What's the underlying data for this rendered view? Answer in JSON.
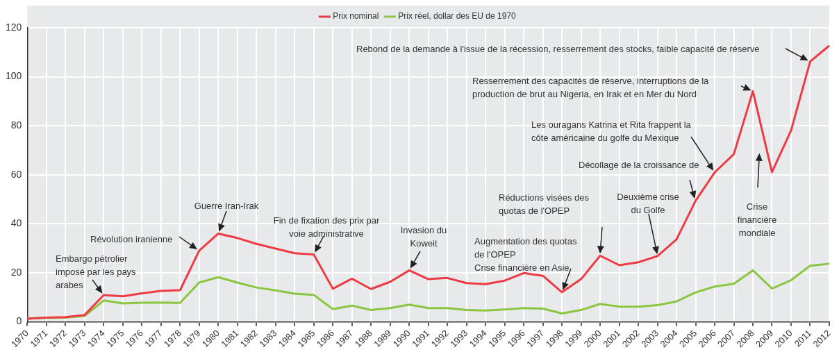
{
  "chart_data": {
    "type": "line",
    "categories": [
      "1970",
      "1971",
      "1972",
      "1973",
      "1974",
      "1975",
      "1976",
      "1977",
      "1978",
      "1979",
      "1980",
      "1981",
      "1982",
      "1983",
      "1984",
      "1985",
      "1986",
      "1987",
      "1988",
      "1989",
      "1990",
      "1991",
      "1992",
      "1993",
      "1994",
      "1995",
      "1996",
      "1997",
      "1998",
      "1999",
      "2000",
      "2001",
      "2002",
      "2003",
      "2004",
      "2005",
      "2006",
      "2007",
      "2008",
      "2009",
      "2010",
      "2011",
      "2012"
    ],
    "series": [
      {
        "name": "Prix nominal",
        "color": "#ee3a43",
        "values": [
          1.3,
          1.7,
          1.9,
          2.8,
          10.9,
          10.4,
          11.6,
          12.6,
          12.9,
          29.0,
          36.0,
          34.2,
          31.8,
          29.9,
          28.0,
          27.5,
          13.5,
          17.6,
          13.4,
          16.3,
          21.0,
          17.4,
          17.9,
          15.8,
          15.4,
          16.8,
          19.9,
          18.8,
          12.1,
          17.4,
          27.0,
          23.1,
          24.3,
          26.8,
          33.6,
          49.4,
          61.0,
          68.4,
          94.1,
          61.1,
          78.1,
          106.2,
          112.7
        ]
      },
      {
        "name": "Prix réel, dollar des EU de 1970",
        "color": "#8cc63f",
        "values": [
          1.3,
          1.6,
          1.7,
          2.4,
          8.7,
          7.5,
          7.8,
          7.9,
          7.7,
          16.0,
          18.2,
          16.0,
          14.0,
          12.8,
          11.5,
          11.0,
          5.2,
          6.6,
          4.8,
          5.6,
          7.0,
          5.6,
          5.6,
          4.8,
          4.6,
          5.0,
          5.6,
          5.4,
          3.4,
          4.8,
          7.3,
          6.2,
          6.2,
          6.8,
          8.3,
          12.0,
          14.4,
          15.5,
          21.0,
          13.6,
          17.0,
          22.9,
          23.7
        ]
      }
    ],
    "ylim": [
      0,
      120
    ],
    "yticks": [
      0,
      20,
      40,
      60,
      80,
      100,
      120
    ],
    "grid": true,
    "legend": "top",
    "marker": "none",
    "line_style": "solid",
    "annotations": [
      {
        "text": "Embargo pétrolier\nimposé par les pays\narabes",
        "x": "1974",
        "y": 10.9
      },
      "Révolution iranienne",
      {
        "text": "Guerre Iran-Irak",
        "x": "1980",
        "y": 36.0
      },
      {
        "text": "Fin de fixation des prix par\nvoie administrative",
        "x": "1985",
        "y": 27.5
      },
      {
        "text": "Invasion du\nKoweit",
        "x": "1990",
        "y": 21.0
      },
      {
        "text": "Augmentation des quotas\nde l'OPEP\nCrise financière en Asie",
        "x": "1998",
        "y": 12.1
      },
      "Réductions visées des\nquotas de l'OPEP",
      "Deuxième crise\ndu Golfe",
      "Décollage de la croissance de",
      "Les ouragans Katrina et Rita frappent la\ncôte américaine du golfe du Mexique",
      "Resserrement des capacités de réserve, interruptions de la\nproduction de brut au Nigeria, en Irak et en Mer du Nord",
      "Crise\nfinancière\nmondiale",
      "Rebond de la demande à l'issue de la récession, resserrement des stocks, faible capacité de réserve"
    ]
  }
}
